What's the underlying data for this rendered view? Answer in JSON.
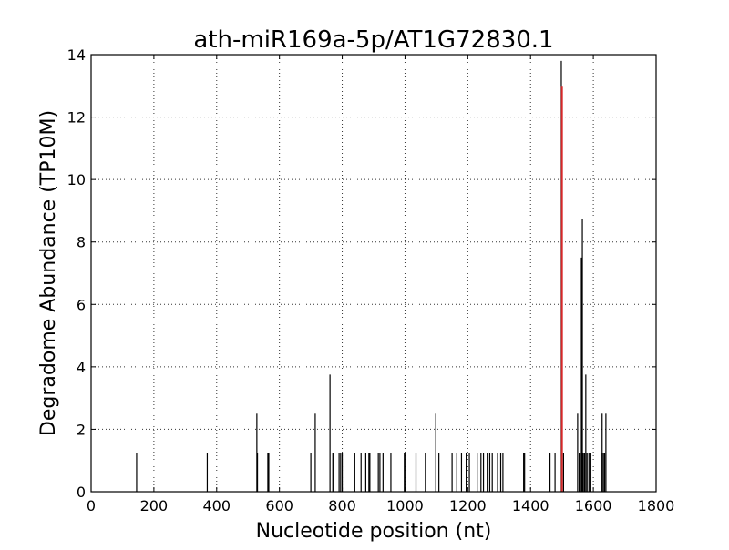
{
  "chart_data": {
    "type": "bar",
    "title": "ath-miR169a-5p/AT1G72830.1",
    "xlabel": "Nucleotide position (nt)",
    "ylabel": "Degradome Abundance (TP10M)",
    "xlim": [
      0,
      1800
    ],
    "ylim": [
      0,
      14
    ],
    "xticks": [
      0,
      200,
      400,
      600,
      800,
      1000,
      1200,
      1400,
      1600,
      1800
    ],
    "yticks": [
      0,
      2,
      4,
      6,
      8,
      10,
      12,
      14
    ],
    "grid": true,
    "series": [
      {
        "color": "#000000",
        "points": [
          {
            "x": 145,
            "y": 1.25
          },
          {
            "x": 370,
            "y": 1.25
          },
          {
            "x": 528,
            "y": 2.5
          },
          {
            "x": 530,
            "y": 1.25
          },
          {
            "x": 563,
            "y": 1.25
          },
          {
            "x": 566,
            "y": 1.25
          },
          {
            "x": 700,
            "y": 1.25
          },
          {
            "x": 714,
            "y": 2.5
          },
          {
            "x": 761,
            "y": 3.75
          },
          {
            "x": 770,
            "y": 1.25
          },
          {
            "x": 773,
            "y": 1.25
          },
          {
            "x": 790,
            "y": 1.25
          },
          {
            "x": 795,
            "y": 1.25
          },
          {
            "x": 800,
            "y": 1.25
          },
          {
            "x": 840,
            "y": 1.25
          },
          {
            "x": 860,
            "y": 1.25
          },
          {
            "x": 875,
            "y": 1.25
          },
          {
            "x": 885,
            "y": 1.25
          },
          {
            "x": 888,
            "y": 1.25
          },
          {
            "x": 915,
            "y": 1.25
          },
          {
            "x": 920,
            "y": 1.25
          },
          {
            "x": 930,
            "y": 1.25
          },
          {
            "x": 955,
            "y": 1.25
          },
          {
            "x": 998,
            "y": 1.25
          },
          {
            "x": 1001,
            "y": 1.25
          },
          {
            "x": 1035,
            "y": 1.25
          },
          {
            "x": 1065,
            "y": 1.25
          },
          {
            "x": 1098,
            "y": 2.5
          },
          {
            "x": 1108,
            "y": 1.25
          },
          {
            "x": 1150,
            "y": 1.25
          },
          {
            "x": 1165,
            "y": 1.25
          },
          {
            "x": 1180,
            "y": 1.25
          },
          {
            "x": 1195,
            "y": 1.25
          },
          {
            "x": 1205,
            "y": 1.25
          },
          {
            "x": 1230,
            "y": 1.25
          },
          {
            "x": 1242,
            "y": 1.25
          },
          {
            "x": 1250,
            "y": 1.25
          },
          {
            "x": 1262,
            "y": 1.25
          },
          {
            "x": 1270,
            "y": 1.25
          },
          {
            "x": 1278,
            "y": 1.25
          },
          {
            "x": 1295,
            "y": 1.25
          },
          {
            "x": 1305,
            "y": 1.25
          },
          {
            "x": 1312,
            "y": 1.25
          },
          {
            "x": 1378,
            "y": 1.25
          },
          {
            "x": 1381,
            "y": 1.25
          },
          {
            "x": 1462,
            "y": 1.25
          },
          {
            "x": 1478,
            "y": 1.25
          },
          {
            "x": 1498,
            "y": 13.8
          },
          {
            "x": 1505,
            "y": 1.25
          },
          {
            "x": 1550,
            "y": 2.5
          },
          {
            "x": 1555,
            "y": 1.25
          },
          {
            "x": 1558,
            "y": 1.25
          },
          {
            "x": 1562,
            "y": 7.5
          },
          {
            "x": 1565,
            "y": 8.75
          },
          {
            "x": 1568,
            "y": 1.25
          },
          {
            "x": 1572,
            "y": 1.25
          },
          {
            "x": 1576,
            "y": 3.75
          },
          {
            "x": 1580,
            "y": 1.25
          },
          {
            "x": 1586,
            "y": 1.25
          },
          {
            "x": 1592,
            "y": 1.25
          },
          {
            "x": 1625,
            "y": 1.25
          },
          {
            "x": 1628,
            "y": 2.5
          },
          {
            "x": 1632,
            "y": 1.25
          },
          {
            "x": 1636,
            "y": 1.25
          },
          {
            "x": 1640,
            "y": 2.5
          }
        ]
      },
      {
        "color": "#d62728",
        "points": [
          {
            "x": 1500,
            "y": 13.0
          }
        ]
      }
    ]
  }
}
